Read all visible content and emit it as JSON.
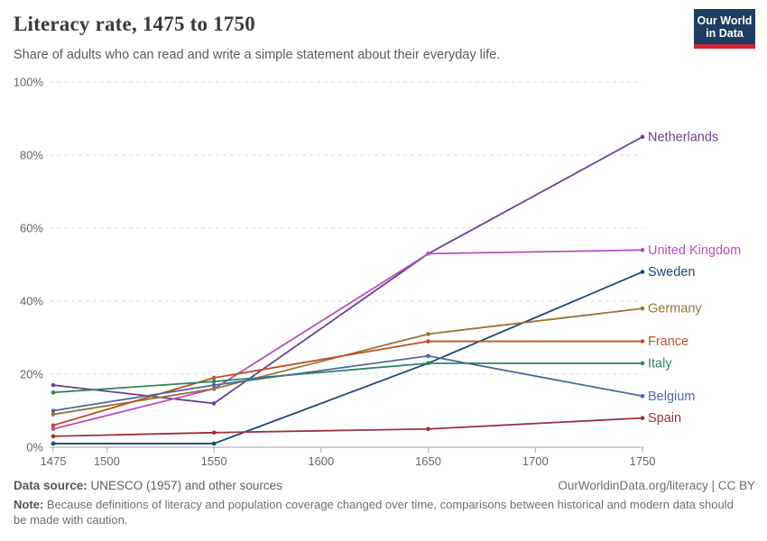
{
  "header": {
    "title": "Literacy rate, 1475 to 1750",
    "subtitle": "Share of adults who can read and write a simple statement about their everyday life.",
    "logo": {
      "line1": "Our World",
      "line2": "in Data",
      "bg_color": "#1d3d63",
      "accent_color": "#d12733"
    }
  },
  "chart_data": {
    "type": "line",
    "title": "Literacy rate, 1475 to 1750",
    "x": [
      1475,
      1550,
      1650,
      1750
    ],
    "series": [
      {
        "name": "Netherlands",
        "color": "#6d3e91",
        "values": [
          17,
          12,
          53,
          85
        ]
      },
      {
        "name": "United Kingdom",
        "color": "#b84ebf",
        "values": [
          5,
          16,
          53,
          54
        ]
      },
      {
        "name": "Sweden",
        "color": "#1d4777",
        "values": [
          1,
          1,
          23,
          48
        ]
      },
      {
        "name": "Germany",
        "color": "#9a7335",
        "values": [
          9,
          16,
          31,
          38
        ]
      },
      {
        "name": "France",
        "color": "#bf4e23",
        "values": [
          6,
          19,
          29,
          29
        ]
      },
      {
        "name": "Italy",
        "color": "#2c8465",
        "values": [
          15,
          18,
          23,
          23
        ]
      },
      {
        "name": "Belgium",
        "color": "#4c6a9c",
        "values": [
          10,
          17,
          25,
          14
        ]
      },
      {
        "name": "Spain",
        "color": "#9b2f3e",
        "values": [
          3,
          4,
          5,
          8
        ]
      }
    ],
    "xticks": [
      1475,
      1500,
      1550,
      1600,
      1650,
      1700,
      1750
    ],
    "yticks": [
      0,
      20,
      40,
      60,
      80,
      100
    ],
    "ytick_format": "{v}%",
    "xlim": [
      1475,
      1750
    ],
    "ylim": [
      0,
      100
    ],
    "grid": "horizontal-dashed",
    "legend_position": "right-of-line-end-labels"
  },
  "footer": {
    "source_label": "Data source:",
    "source_text": " UNESCO (1957) and other sources",
    "link_text": "OurWorldinData.org/literacy | CC BY",
    "note_label": "Note:",
    "note_text": " Because definitions of literacy and population coverage changed over time, comparisons between historical and modern data should be made with caution."
  }
}
